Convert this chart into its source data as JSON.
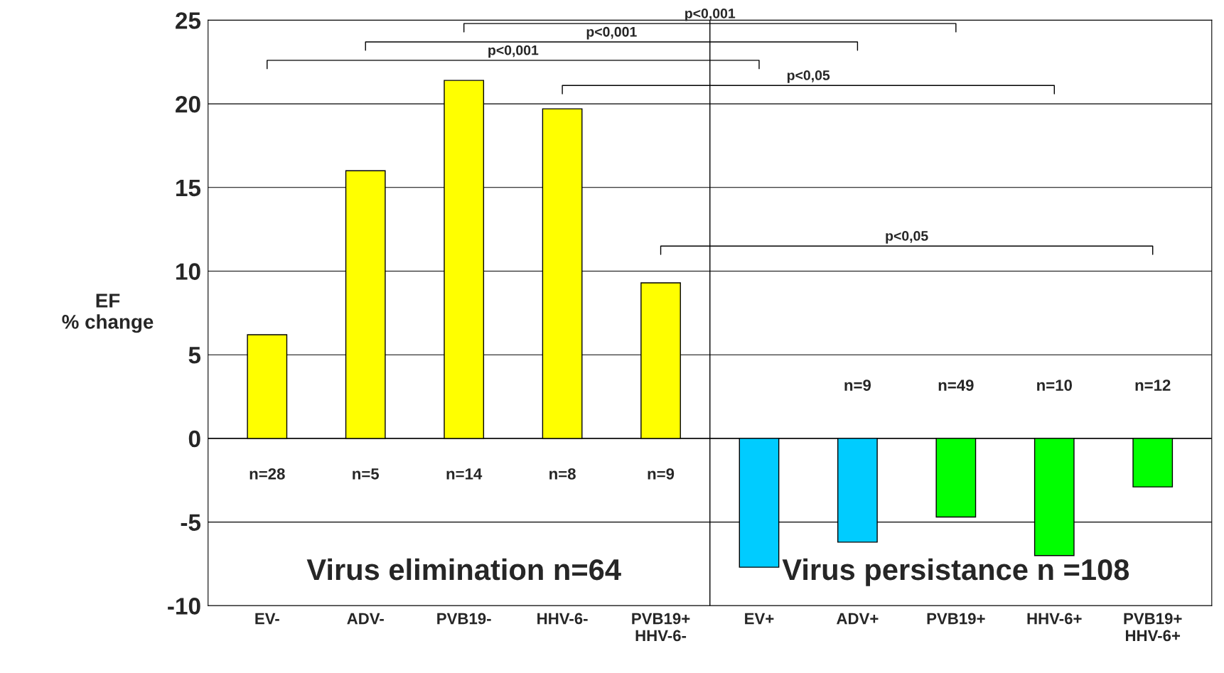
{
  "chart_data": {
    "type": "bar",
    "ylabel": "EF\n% change",
    "categories": [
      "EV-",
      "ADV-",
      "PVB19-",
      "HHV-6-",
      "PVB19+\nHHV-6-",
      "EV+",
      "ADV+",
      "PVB19+",
      "HHV-6+",
      "PVB19+\nHHV-6+"
    ],
    "values": [
      6.2,
      16.0,
      21.4,
      19.7,
      9.3,
      -7.7,
      -6.2,
      -4.7,
      -7.0,
      -2.9
    ],
    "colors": [
      "#ffff00",
      "#ffff00",
      "#ffff00",
      "#ffff00",
      "#ffff00",
      "#00ccff",
      "#00ccff",
      "#00ff00",
      "#00ff00",
      "#00ff00"
    ],
    "ylim": [
      -10,
      25
    ],
    "yticks": [
      -10,
      -5,
      0,
      5,
      10,
      15,
      20,
      25
    ],
    "grid": "y",
    "legend": false,
    "annotations": [
      "p<0,001",
      "p<0,001",
      "p<0,001",
      "p<0,05",
      "p<0,05",
      "Virus elimination n=64",
      "Virus persistance n =108",
      "n=28",
      "n=5",
      "n=14",
      "n=8",
      "n=9",
      "n=9",
      "n=49",
      "n=10",
      "n=12"
    ]
  }
}
